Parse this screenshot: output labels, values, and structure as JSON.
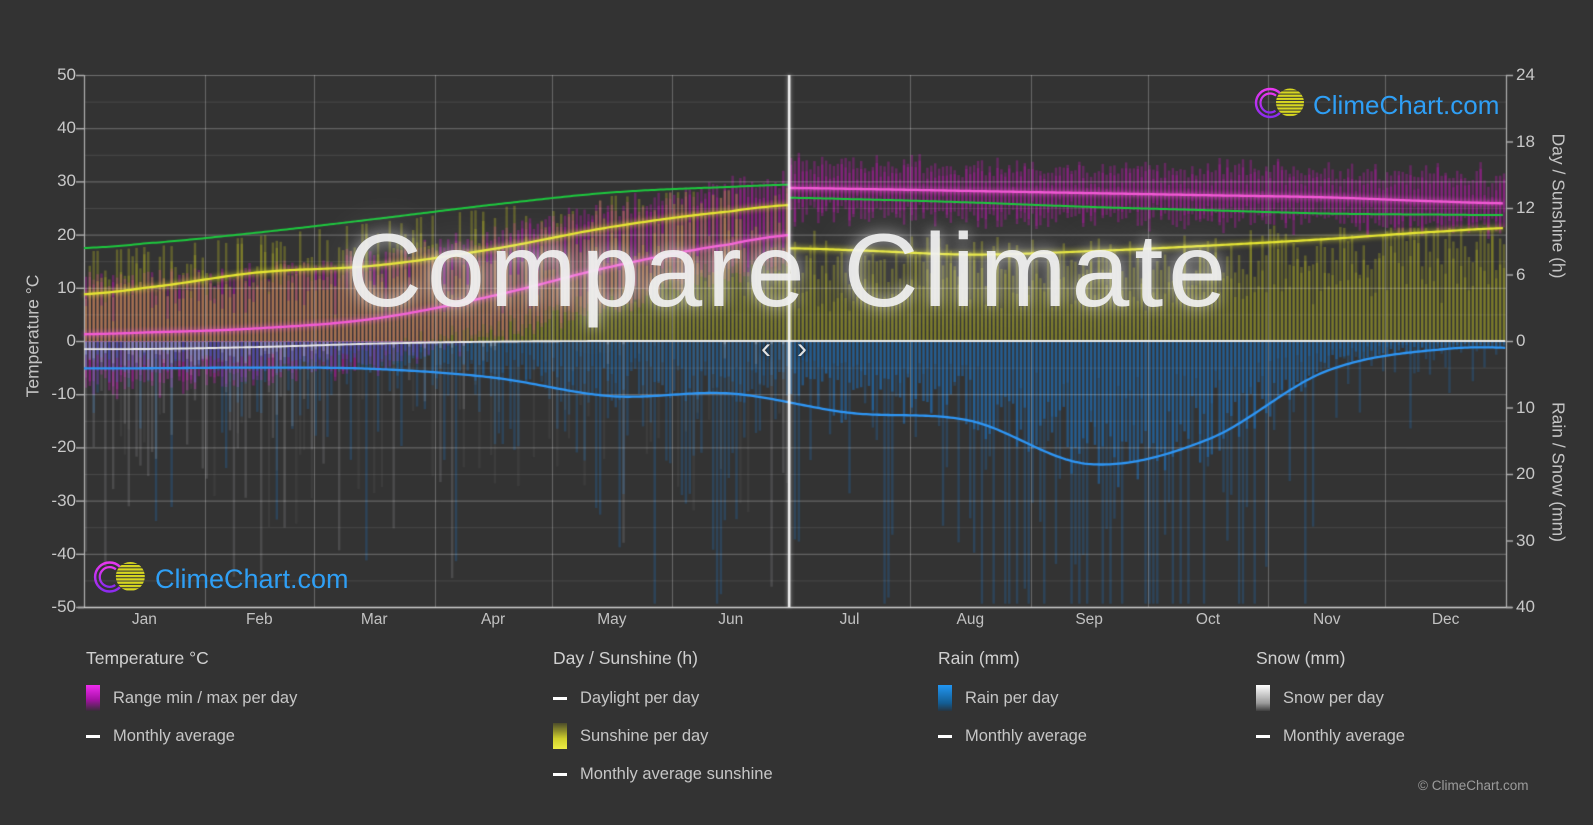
{
  "watermark": "Compare Climate",
  "nav": {
    "prev": "‹",
    "next": "›"
  },
  "brand": {
    "text": "ClimeChart.com",
    "copyright": "© ClimeChart.com"
  },
  "axes": {
    "temperature": {
      "title": "Temperature °C",
      "min": -50,
      "max": 50,
      "tick_step": 10
    },
    "day_sunshine": {
      "title": "Day / Sunshine (h)",
      "min": 0,
      "max": 24,
      "tick_step": 6
    },
    "rain_snow": {
      "title": "Rain / Snow (mm)",
      "min": 0,
      "max": 40,
      "tick_step": 10
    }
  },
  "legend": [
    {
      "title": "Temperature °C",
      "items": [
        {
          "swatch": "gradient-magenta",
          "label": "Range min / max per day"
        },
        {
          "swatch": "line-pink",
          "label": "Monthly average"
        }
      ]
    },
    {
      "title": "Day / Sunshine (h)",
      "items": [
        {
          "swatch": "line-green",
          "label": "Daylight per day"
        },
        {
          "swatch": "gradient-yellow",
          "label": "Sunshine per day"
        },
        {
          "swatch": "line-yellow",
          "label": "Monthly average sunshine"
        }
      ]
    },
    {
      "title": "Rain (mm)",
      "items": [
        {
          "swatch": "gradient-blue",
          "label": "Rain per day"
        },
        {
          "swatch": "line-blue",
          "label": "Monthly average"
        }
      ]
    },
    {
      "title": "Snow (mm)",
      "items": [
        {
          "swatch": "gradient-snow",
          "label": "Snow per day"
        },
        {
          "swatch": "line-white",
          "label": "Monthly average"
        }
      ]
    }
  ],
  "chart_data": {
    "type": "bar",
    "title": "Compare Climate",
    "months": [
      "Jan",
      "Feb",
      "Mar",
      "Apr",
      "May",
      "Jun",
      "Jul",
      "Aug",
      "Sep",
      "Oct",
      "Nov",
      "Dec"
    ],
    "month_days": [
      31,
      28,
      31,
      30,
      31,
      30,
      31,
      31,
      30,
      31,
      30,
      31
    ],
    "divider_after_month": "Jun",
    "temp_axis_range": [
      -50,
      50
    ],
    "sunshine_axis_range": [
      0,
      24
    ],
    "rain_axis_range": [
      0,
      40
    ],
    "series": {
      "daylight_h": [
        8.8,
        9.8,
        11.0,
        12.3,
        13.4,
        13.9,
        12.8,
        12.5,
        12.1,
        11.8,
        11.5,
        11.4
      ],
      "sunshine_avg_h": [
        4.8,
        6.2,
        6.8,
        8.3,
        10.3,
        11.7,
        8.2,
        7.8,
        8.1,
        8.6,
        9.2,
        9.9
      ],
      "temp_avg_c": [
        1.6,
        2.4,
        4.2,
        8.5,
        14.0,
        18.2,
        28.6,
        28.2,
        27.8,
        27.4,
        27.0,
        26.2
      ],
      "temp_daily_max_c": [
        12,
        13,
        16,
        20,
        25,
        29,
        33.5,
        33.0,
        32.5,
        32.5,
        32.0,
        31.5
      ],
      "temp_daily_min_c": [
        -8,
        -7,
        -4,
        1,
        7,
        12,
        23.5,
        23.5,
        23.0,
        22.5,
        22.0,
        21.5
      ],
      "rain_avg_mm": [
        4.1,
        4.0,
        4.2,
        5.5,
        8.3,
        7.9,
        10.8,
        12.0,
        18.5,
        14.8,
        4.5,
        1.2
      ],
      "snow_avg_mm": [
        1.2,
        0.9,
        0.4,
        0.1,
        0,
        0,
        0,
        0,
        0,
        0,
        0,
        0
      ]
    }
  },
  "colors": {
    "background": "#333333",
    "grid": "#ffffff",
    "magenta_bar": "#d714c8",
    "pink_line": "#f25ad5",
    "green_line": "#1dc93e",
    "yellow_bar": "#cbcb24",
    "yellow_line": "#e6e632",
    "blue_bar": "#1e76c8",
    "blue_line": "#2e96f5",
    "snow_bar": "#c8c8cd",
    "white_line": "#ebebeb",
    "brand_blue": "#2f9ff5",
    "logo_magenta": "#e837ef",
    "logo_purple": "#8c2bf0",
    "logo_yellow": "#d6d621"
  }
}
